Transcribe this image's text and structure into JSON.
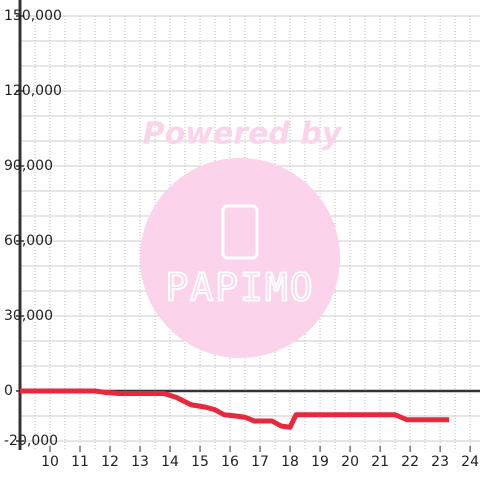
{
  "chart_data": {
    "type": "line",
    "watermark": {
      "line1": "Powered by",
      "line2": "PAPIMO"
    },
    "xlim": [
      9,
      24.33
    ],
    "ylim": [
      -23600,
      150000
    ],
    "xticks": [
      10,
      11,
      12,
      13,
      14,
      15,
      16,
      17,
      18,
      19,
      20,
      21,
      22,
      23,
      24
    ],
    "xgrid": [
      9.5,
      10,
      10.5,
      11,
      11.5,
      12,
      12.5,
      13,
      13.5,
      14,
      14.5,
      15,
      15.5,
      16,
      16.5,
      17,
      17.5,
      18,
      18.5,
      19,
      19.5,
      20,
      20.5,
      21,
      21.5,
      22,
      22.5,
      23,
      23.5,
      24
    ],
    "yticks": [
      {
        "value": 150000,
        "label": "150,000"
      },
      {
        "value": 120000,
        "label": "120,000"
      },
      {
        "value": 90000,
        "label": "90,000"
      },
      {
        "value": 60000,
        "label": "60,000"
      },
      {
        "value": 30000,
        "label": "30,000"
      },
      0,
      {
        "value": -20000,
        "label": "-20,000"
      }
    ],
    "ygrid": [
      -20000,
      -10000,
      10000,
      20000,
      30000,
      40000,
      50000,
      60000,
      70000,
      80000,
      90000,
      100000,
      110000,
      120000,
      130000,
      140000,
      150000
    ],
    "grid": true,
    "series": [
      {
        "color": "#e8283c",
        "x": [
          9,
          11.5,
          11.8,
          12.3,
          13.8,
          14.2,
          14.7,
          15.2,
          15.5,
          15.8,
          16.2,
          16.5,
          16.8,
          17.4,
          17.7,
          18.0,
          18.2,
          21.5,
          21.9,
          23.3
        ],
        "values": [
          0,
          0,
          -500,
          -1000,
          -1000,
          -2500,
          -5500,
          -6500,
          -7500,
          -9500,
          -10000,
          -10500,
          -12000,
          -12000,
          -14000,
          -14500,
          -9500,
          -9500,
          -11500,
          -11500
        ]
      }
    ]
  }
}
